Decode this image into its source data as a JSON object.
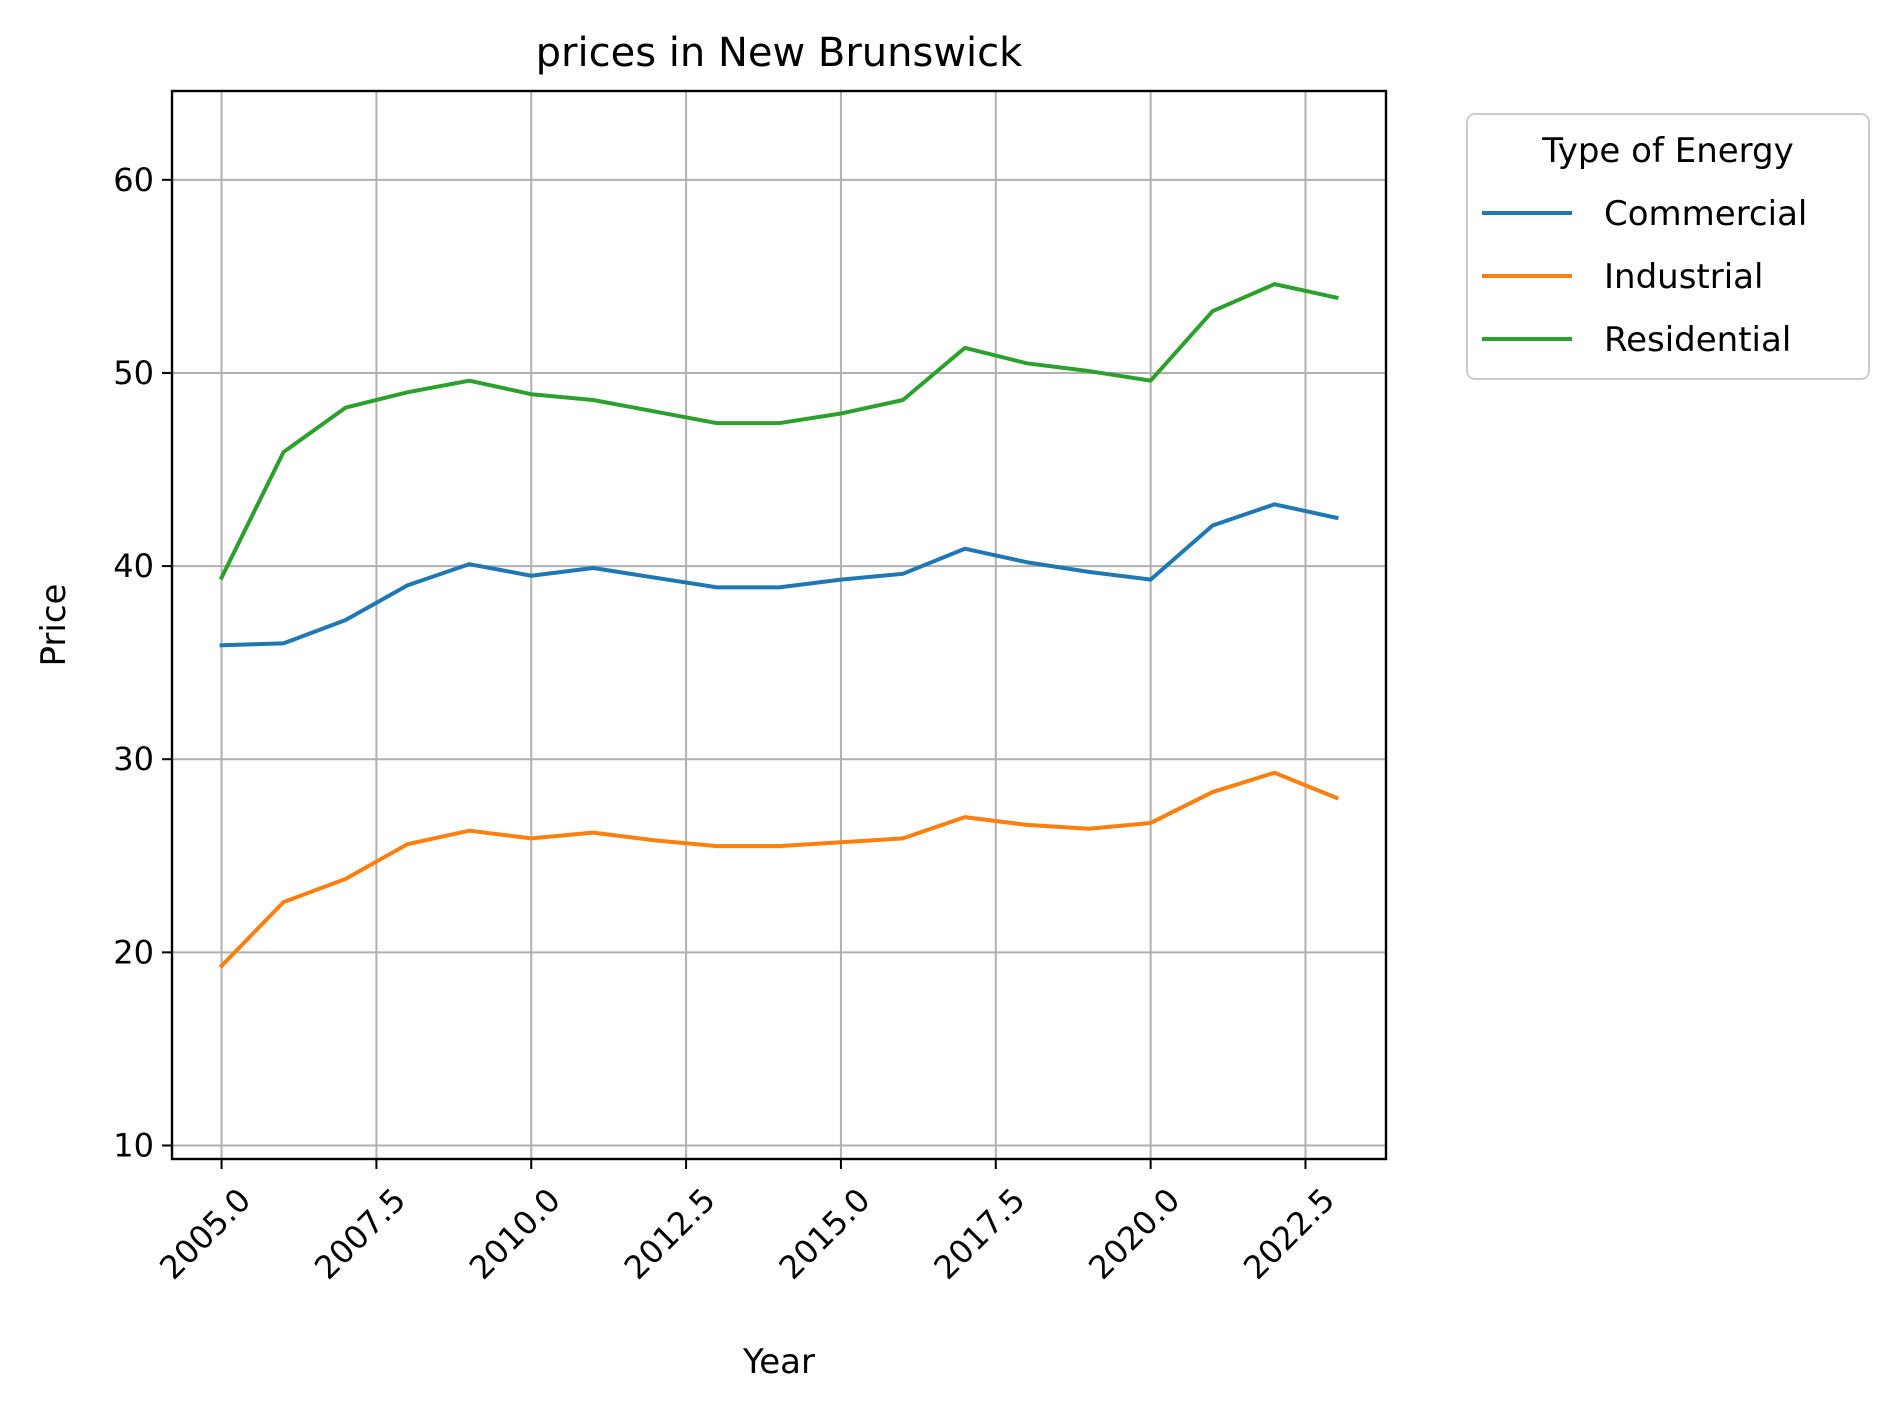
{
  "chart_data": {
    "type": "line",
    "title": "prices in New Brunswick",
    "xlabel": "Year",
    "ylabel": "Price",
    "xlim": [
      2004.2,
      2023.8
    ],
    "ylim": [
      9.3,
      64.6
    ],
    "x_ticks": [
      2005.0,
      2007.5,
      2010.0,
      2012.5,
      2015.0,
      2017.5,
      2020.0,
      2022.5
    ],
    "x_tick_labels": [
      "2005.0",
      "2007.5",
      "2010.0",
      "2012.5",
      "2015.0",
      "2017.5",
      "2020.0",
      "2022.5"
    ],
    "y_ticks": [
      10,
      20,
      30,
      40,
      50,
      60
    ],
    "y_tick_labels": [
      "10",
      "20",
      "30",
      "40",
      "50",
      "60"
    ],
    "grid": true,
    "legend": {
      "title": "Type of Energy",
      "placement": "outside-top-right"
    },
    "x": [
      2005,
      2006,
      2007,
      2008,
      2009,
      2010,
      2011,
      2012,
      2013,
      2014,
      2015,
      2016,
      2017,
      2018,
      2019,
      2020,
      2021,
      2022,
      2023
    ],
    "series": [
      {
        "name": "Commercial",
        "color": "#1f77b4",
        "values": [
          35.9,
          36.0,
          37.2,
          39.0,
          40.1,
          39.5,
          39.9,
          39.4,
          38.9,
          38.9,
          39.3,
          39.6,
          40.9,
          40.2,
          39.7,
          39.3,
          42.1,
          43.2,
          42.5
        ]
      },
      {
        "name": "Industrial",
        "color": "#ff7f0e",
        "values": [
          19.3,
          22.6,
          23.8,
          25.6,
          26.3,
          25.9,
          26.2,
          25.8,
          25.5,
          25.5,
          25.7,
          25.9,
          27.0,
          26.6,
          26.4,
          26.7,
          28.3,
          29.3,
          28.0
        ]
      },
      {
        "name": "Residential",
        "color": "#2ca02c",
        "values": [
          39.4,
          45.9,
          48.2,
          49.0,
          49.6,
          48.9,
          48.6,
          48.0,
          47.4,
          47.4,
          47.9,
          48.6,
          51.3,
          50.5,
          50.1,
          49.6,
          53.2,
          54.6,
          53.9
        ]
      }
    ]
  }
}
